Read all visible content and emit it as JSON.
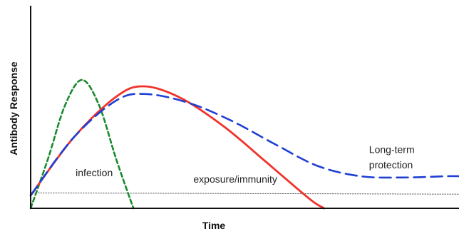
{
  "chart_data": {
    "type": "line",
    "title": "",
    "xlabel": "Time",
    "ylabel": "Antibody Response",
    "xlim": [
      0,
      100
    ],
    "ylim": [
      0,
      100
    ],
    "grid": false,
    "ticks": false,
    "series": [
      {
        "key": "infection",
        "color": "#1a8a2e",
        "style": "dashed",
        "x": [
          0,
          4,
          8,
          12,
          16,
          20,
          24
        ],
        "y": [
          0,
          38,
          80,
          100,
          80,
          38,
          0
        ]
      },
      {
        "key": "exposure",
        "color": "#f0322a",
        "style": "solid",
        "x": [
          0,
          10,
          20,
          26.5,
          35,
          45,
          55,
          62,
          66,
          68.5
        ],
        "y": [
          10,
          55,
          87,
          95,
          86,
          64,
          36,
          16,
          5,
          0
        ]
      },
      {
        "key": "protection",
        "color": "#1f3fd4",
        "style": "dashed",
        "x": [
          0,
          10,
          20,
          27,
          37,
          47,
          57,
          67,
          77,
          87,
          97,
          100
        ],
        "y": [
          10,
          55,
          84,
          89,
          82,
          68,
          50,
          33,
          25,
          24,
          25,
          25
        ]
      },
      {
        "key": "baseline",
        "color": "#555555",
        "style": "dotted",
        "x": [
          0,
          100
        ],
        "y": [
          12,
          11
        ]
      }
    ],
    "annotations": [
      {
        "text": "infection",
        "x": 10.5,
        "y": 25
      },
      {
        "text": "exposure/immunity",
        "x": 38,
        "y": 20
      },
      {
        "text": "Long-term",
        "x": 79,
        "y": 43
      },
      {
        "text": "protection",
        "x": 79,
        "y": 31
      }
    ]
  }
}
